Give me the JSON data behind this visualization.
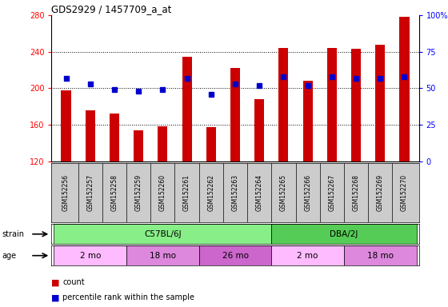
{
  "title": "GDS2929 / 1457709_a_at",
  "samples": [
    "GSM152256",
    "GSM152257",
    "GSM152258",
    "GSM152259",
    "GSM152260",
    "GSM152261",
    "GSM152262",
    "GSM152263",
    "GSM152264",
    "GSM152265",
    "GSM152266",
    "GSM152267",
    "GSM152268",
    "GSM152269",
    "GSM152270"
  ],
  "counts": [
    198,
    176,
    172,
    154,
    158,
    235,
    157,
    222,
    188,
    244,
    208,
    244,
    243,
    248,
    278
  ],
  "percentile_ranks": [
    57,
    53,
    49,
    48,
    49,
    57,
    46,
    53,
    52,
    58,
    52,
    58,
    57,
    57,
    58
  ],
  "y_min": 120,
  "y_max": 280,
  "y_ticks": [
    120,
    160,
    200,
    240,
    280
  ],
  "right_y_ticks": [
    0,
    25,
    50,
    75,
    100
  ],
  "bar_color": "#cc0000",
  "dot_color": "#0000cc",
  "strain_groups": [
    {
      "label": "C57BL/6J",
      "start": 0,
      "end": 9,
      "color": "#88ee88"
    },
    {
      "label": "DBA/2J",
      "start": 9,
      "end": 15,
      "color": "#55cc55"
    }
  ],
  "age_groups": [
    {
      "label": "2 mo",
      "start": 0,
      "end": 3,
      "color": "#ffbbff"
    },
    {
      "label": "18 mo",
      "start": 3,
      "end": 6,
      "color": "#dd88dd"
    },
    {
      "label": "26 mo",
      "start": 6,
      "end": 9,
      "color": "#cc66cc"
    },
    {
      "label": "2 mo",
      "start": 9,
      "end": 12,
      "color": "#ffbbff"
    },
    {
      "label": "18 mo",
      "start": 12,
      "end": 15,
      "color": "#dd88dd"
    }
  ]
}
